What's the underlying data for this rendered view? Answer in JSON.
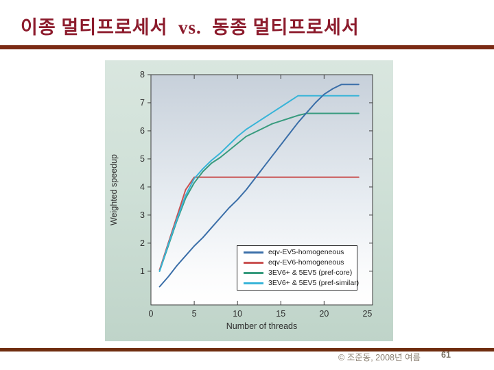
{
  "slide": {
    "title": "이종 멀티프로세서  vs.  동종 멀티프로세서",
    "footer": {
      "copyright": "© 조준동, 2008년 여름",
      "page_number": "61"
    },
    "colors": {
      "title_text": "#8c1b2c",
      "rule_top": "#7b2a14",
      "rule_bottom": "#6f2c0e"
    }
  },
  "chart_data": {
    "type": "line",
    "title": "",
    "xlabel": "Number of threads",
    "ylabel": "Weighted speedup",
    "xlim": [
      0,
      25.6
    ],
    "ylim": [
      -0.2,
      8
    ],
    "x_ticks": [
      0,
      5,
      10,
      15,
      20,
      25
    ],
    "y_ticks": [
      1,
      2,
      3,
      4,
      5,
      6,
      7,
      8
    ],
    "grid": false,
    "legend_position": "lower-right",
    "x_start": 1,
    "x_step": 1,
    "draw_order": [
      1,
      2,
      3,
      0
    ],
    "series": [
      {
        "name": "eqv-EV5-homogeneous",
        "color": "#3a6ea8",
        "values": [
          0.45,
          0.8,
          1.2,
          1.55,
          1.9,
          2.2,
          2.55,
          2.9,
          3.25,
          3.55,
          3.9,
          4.3,
          4.7,
          5.1,
          5.5,
          5.9,
          6.3,
          6.65,
          7.0,
          7.3,
          7.5,
          7.65,
          7.65,
          7.65
        ]
      },
      {
        "name": "eqv-EV6-homogeneous",
        "color": "#c95050",
        "values": [
          1.05,
          2.0,
          2.95,
          3.9,
          4.35,
          4.35,
          4.35,
          4.35,
          4.35,
          4.35,
          4.35,
          4.35,
          4.35,
          4.35,
          4.35,
          4.35,
          4.35,
          4.35,
          4.35,
          4.35,
          4.35,
          4.35,
          4.35,
          4.35
        ]
      },
      {
        "name": "3EV6+ & 5EV5 (pref-core)",
        "color": "#389b7e",
        "values": [
          1.0,
          1.9,
          2.8,
          3.6,
          4.15,
          4.55,
          4.85,
          5.05,
          5.3,
          5.55,
          5.8,
          5.95,
          6.1,
          6.25,
          6.35,
          6.45,
          6.55,
          6.62,
          6.62,
          6.62,
          6.62,
          6.62,
          6.62,
          6.62
        ]
      },
      {
        "name": "3EV6+ & 5EV5 (pref-similar)",
        "color": "#38b4d8",
        "values": [
          1.0,
          1.95,
          2.85,
          3.7,
          4.3,
          4.65,
          4.95,
          5.2,
          5.5,
          5.8,
          6.05,
          6.25,
          6.45,
          6.65,
          6.85,
          7.05,
          7.25,
          7.25,
          7.25,
          7.25,
          7.25,
          7.25,
          7.25,
          7.25
        ]
      }
    ],
    "plot_bg_top": "#c7d0da",
    "plot_bg_bottom": "#ffffff",
    "axis_color": "#3a3a3a",
    "tick_label_color": "#2e2e2e"
  }
}
